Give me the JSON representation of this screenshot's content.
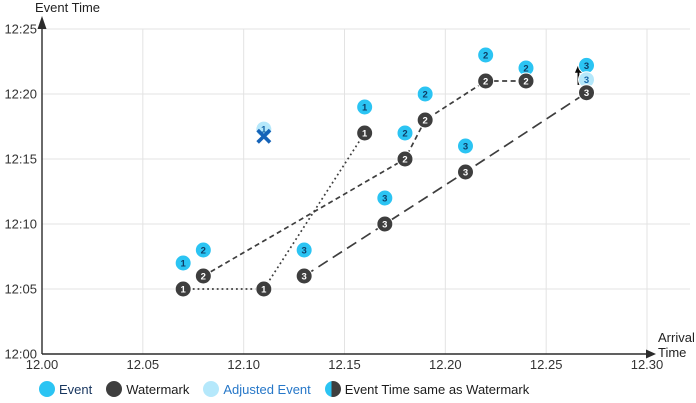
{
  "colors": {
    "event": "#2BC4F3",
    "watermark": "#3E3E3E",
    "adjusted": "#B5E8FB",
    "number_navy": "#0E3D66",
    "number_adjusted": "#1565A8",
    "number_white": "#FFFFFF",
    "cross_blue": "#1563B8",
    "grid": "#E3E3E3",
    "axis": "#2B2B2B",
    "tick_text": "#333333",
    "arrow_black": "#0B0B0B",
    "legend_event_text": "#17355E",
    "legend_dark_text": "#1C1C1C",
    "legend_adjusted_text": "#2677C8"
  },
  "chart_data": {
    "type": "scatter",
    "xlabel": "Arrival\nTime",
    "ylabel": "Event Time",
    "x_axis": {
      "min": 12.0,
      "max": 12.3,
      "ticks": [
        {
          "label": "12.00",
          "v": 12.0
        },
        {
          "label": "12.05",
          "v": 12.05
        },
        {
          "label": "12.10",
          "v": 12.1
        },
        {
          "label": "12.15",
          "v": 12.15
        },
        {
          "label": "12.20",
          "v": 12.2
        },
        {
          "label": "12.25",
          "v": 12.25
        },
        {
          "label": "12.30",
          "v": 12.3
        }
      ]
    },
    "y_axis": {
      "min_minutes": 0,
      "max_minutes": 25,
      "unit": "minutes after 12:00",
      "ticks": [
        {
          "label": "12:00",
          "m": 0
        },
        {
          "label": "12:05",
          "m": 5
        },
        {
          "label": "12:10",
          "m": 10
        },
        {
          "label": "12:15",
          "m": 15
        },
        {
          "label": "12:20",
          "m": 20
        },
        {
          "label": "12:25",
          "m": 25
        }
      ]
    },
    "series": [
      {
        "name": "Event",
        "marker": "event",
        "points": [
          [
            12.07,
            7,
            "1"
          ],
          [
            12.08,
            8,
            "2"
          ],
          [
            12.13,
            8,
            "3"
          ],
          [
            12.16,
            19,
            "1"
          ],
          [
            12.17,
            12,
            "3"
          ],
          [
            12.18,
            17,
            "2"
          ],
          [
            12.19,
            20,
            "2"
          ],
          [
            12.21,
            16,
            "3"
          ],
          [
            12.22,
            23,
            "2"
          ],
          [
            12.24,
            22,
            "2"
          ],
          [
            12.27,
            22.2,
            "3"
          ]
        ]
      },
      {
        "name": "Adjusted Event",
        "marker": "adjusted",
        "points": [
          [
            12.11,
            17.3,
            "1"
          ],
          [
            12.27,
            21.1,
            "3"
          ]
        ]
      },
      {
        "name": "Watermark",
        "marker": "watermark",
        "points": [
          [
            12.07,
            5,
            "1"
          ],
          [
            12.08,
            6,
            "2"
          ],
          [
            12.11,
            5,
            "1"
          ],
          [
            12.13,
            6,
            "3"
          ],
          [
            12.16,
            17,
            "1"
          ],
          [
            12.17,
            10,
            "3"
          ],
          [
            12.18,
            15,
            "2"
          ],
          [
            12.19,
            18,
            "2"
          ],
          [
            12.21,
            14,
            "3"
          ],
          [
            12.22,
            21,
            "2"
          ],
          [
            12.24,
            21,
            "2"
          ],
          [
            12.27,
            20.1,
            "3"
          ]
        ]
      }
    ],
    "connector_lines": [
      {
        "series": "watermark-1",
        "style": "dotted",
        "points": [
          [
            12.07,
            5
          ],
          [
            12.11,
            5
          ],
          [
            12.16,
            17
          ]
        ]
      },
      {
        "series": "watermark-2",
        "style": "dashed",
        "points": [
          [
            12.08,
            6
          ],
          [
            12.18,
            15
          ],
          [
            12.19,
            18
          ],
          [
            12.22,
            21
          ],
          [
            12.24,
            21
          ]
        ]
      },
      {
        "series": "watermark-3",
        "style": "longdash",
        "points": [
          [
            12.13,
            6
          ],
          [
            12.17,
            10
          ],
          [
            12.21,
            14
          ],
          [
            12.27,
            20.1
          ]
        ]
      }
    ],
    "annotations": [
      {
        "type": "crossed-out",
        "x": 12.11,
        "y": 16.75
      },
      {
        "type": "up-arrow",
        "x": 12.266,
        "y_from": 20.7,
        "y_to": 22.1
      }
    ]
  },
  "legend": {
    "items": [
      {
        "label": "Event",
        "marker": "event"
      },
      {
        "label": "Watermark",
        "marker": "watermark"
      },
      {
        "label": "Adjusted Event",
        "marker": "adjusted"
      },
      {
        "label": "Event Time same as Watermark",
        "marker": "half"
      }
    ]
  }
}
